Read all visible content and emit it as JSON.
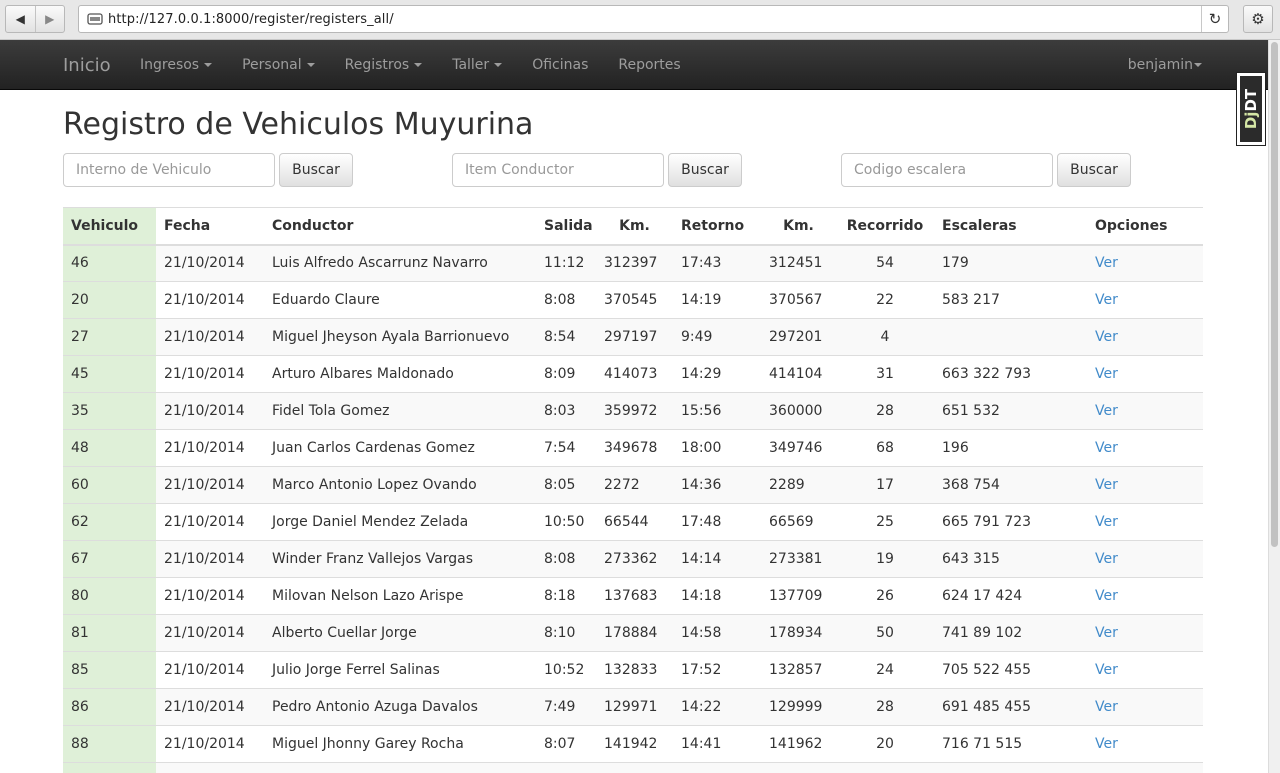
{
  "browser": {
    "url": "http://127.0.0.1:8000/register/registers_all/"
  },
  "navbar": {
    "brand": "Inicio",
    "menu": [
      {
        "label": "Ingresos",
        "dropdown": true
      },
      {
        "label": "Personal",
        "dropdown": true
      },
      {
        "label": "Registros",
        "dropdown": true
      },
      {
        "label": "Taller",
        "dropdown": true
      },
      {
        "label": "Oficinas",
        "dropdown": false
      },
      {
        "label": "Reportes",
        "dropdown": false
      }
    ],
    "user": "benjamin"
  },
  "djdt": {
    "label_dj": "Dj",
    "label_dt": "DT"
  },
  "page": {
    "title": "Registro de Vehiculos Muyurina"
  },
  "search": [
    {
      "placeholder": "Interno de Vehiculo",
      "button": "Buscar"
    },
    {
      "placeholder": "Item Conductor",
      "button": "Buscar"
    },
    {
      "placeholder": "Codigo escalera",
      "button": "Buscar"
    }
  ],
  "table": {
    "headers": [
      "Vehiculo",
      "Fecha",
      "Conductor",
      "Salida",
      "Km.",
      "Retorno",
      "Km.",
      "Recorrido",
      "Escaleras",
      "Opciones"
    ],
    "rows": [
      [
        "46",
        "21/10/2014",
        "Luis Alfredo Ascarrunz Navarro",
        "11:12",
        "312397",
        "17:43",
        "312451",
        "54",
        "179",
        "Ver"
      ],
      [
        "20",
        "21/10/2014",
        "Eduardo Claure",
        "8:08",
        "370545",
        "14:19",
        "370567",
        "22",
        "583 217",
        "Ver"
      ],
      [
        "27",
        "21/10/2014",
        "Miguel Jheyson Ayala Barrionuevo",
        "8:54",
        "297197",
        "9:49",
        "297201",
        "4",
        "",
        "Ver"
      ],
      [
        "45",
        "21/10/2014",
        "Arturo Albares Maldonado",
        "8:09",
        "414073",
        "14:29",
        "414104",
        "31",
        "663 322 793",
        "Ver"
      ],
      [
        "35",
        "21/10/2014",
        "Fidel Tola Gomez",
        "8:03",
        "359972",
        "15:56",
        "360000",
        "28",
        "651 532",
        "Ver"
      ],
      [
        "48",
        "21/10/2014",
        "Juan Carlos Cardenas Gomez",
        "7:54",
        "349678",
        "18:00",
        "349746",
        "68",
        "196",
        "Ver"
      ],
      [
        "60",
        "21/10/2014",
        "Marco Antonio Lopez Ovando",
        "8:05",
        "2272",
        "14:36",
        "2289",
        "17",
        "368 754",
        "Ver"
      ],
      [
        "62",
        "21/10/2014",
        "Jorge Daniel Mendez Zelada",
        "10:50",
        "66544",
        "17:48",
        "66569",
        "25",
        "665 791 723",
        "Ver"
      ],
      [
        "67",
        "21/10/2014",
        "Winder Franz Vallejos Vargas",
        "8:08",
        "273362",
        "14:14",
        "273381",
        "19",
        "643 315",
        "Ver"
      ],
      [
        "80",
        "21/10/2014",
        "Milovan Nelson Lazo Arispe",
        "8:18",
        "137683",
        "14:18",
        "137709",
        "26",
        "624 17 424",
        "Ver"
      ],
      [
        "81",
        "21/10/2014",
        "Alberto Cuellar Jorge",
        "8:10",
        "178884",
        "14:58",
        "178934",
        "50",
        "741 89 102",
        "Ver"
      ],
      [
        "85",
        "21/10/2014",
        "Julio Jorge Ferrel Salinas",
        "10:52",
        "132833",
        "17:52",
        "132857",
        "24",
        "705 522 455",
        "Ver"
      ],
      [
        "86",
        "21/10/2014",
        "Pedro Antonio Azuga Davalos",
        "7:49",
        "129971",
        "14:22",
        "129999",
        "28",
        "691 485 455",
        "Ver"
      ],
      [
        "88",
        "21/10/2014",
        "Miguel Jhonny Garey Rocha",
        "8:07",
        "141942",
        "14:41",
        "141962",
        "20",
        "716 71 515",
        "Ver"
      ]
    ]
  }
}
